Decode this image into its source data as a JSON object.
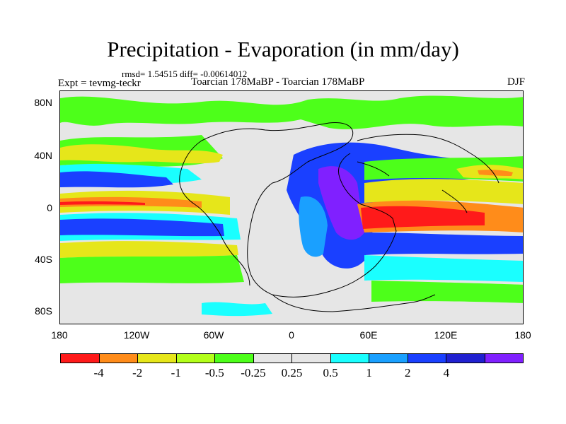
{
  "title": "Precipitation - Evaporation (in mm/day)",
  "stats": "rmsd= 1.54515 diff= -0.00614012",
  "left_label": "Expt = tevmg-teckr",
  "center_label": "Toarcian 178MaBP - Toarcian 178MaBP",
  "right_label": "DJF",
  "map": {
    "y_ticks": [
      "80N",
      "40N",
      "0",
      "40S",
      "80S"
    ],
    "x_ticks": [
      "180",
      "120W",
      "60W",
      "0",
      "60E",
      "120E",
      "180"
    ]
  },
  "colorbar": {
    "colors": [
      "#ff1a1a",
      "#ff8c1a",
      "#e6e61a",
      "#b3ff1a",
      "#4dff1a",
      "#e6e6e6",
      "#e6e6e6",
      "#1affff",
      "#1aa0ff",
      "#1a40ff",
      "#2020d0",
      "#8020ff"
    ],
    "labels": [
      "-4",
      "-2",
      "-1",
      "-0.5",
      "-0.25",
      "0.25",
      "0.5",
      "1",
      "2",
      "4"
    ]
  },
  "colors": {
    "strong_negative": "#ff1a1a",
    "negative": "#e6e61a",
    "weak_negative": "#4dff1a",
    "neutral": "#e6e6e6",
    "weak_positive": "#1affff",
    "positive": "#1a40ff",
    "strong_positive": "#8020ff"
  }
}
